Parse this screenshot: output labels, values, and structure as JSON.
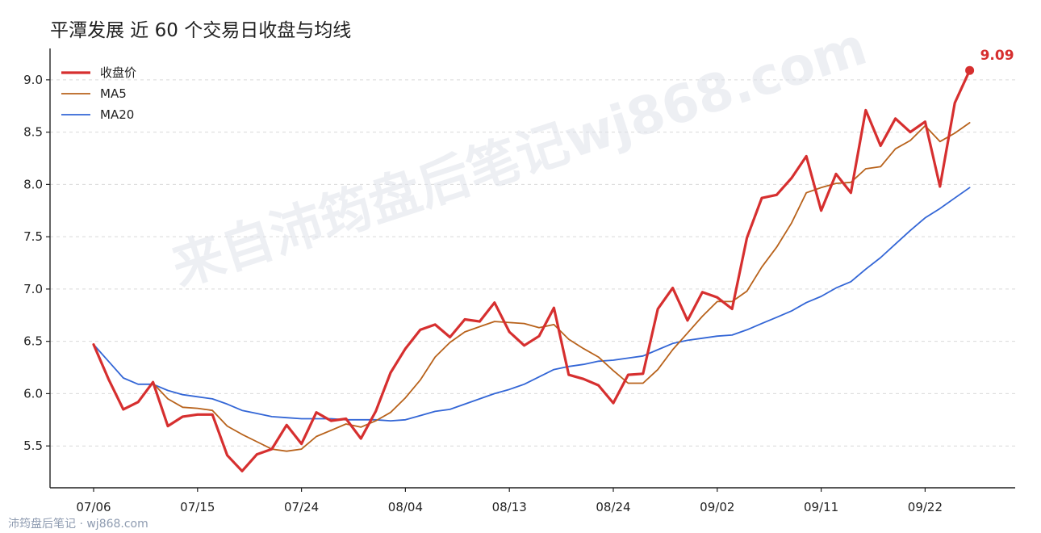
{
  "watermark": {
    "main": "来自沛筠盘后笔记wj868.com",
    "corner": "沛筠盘后笔记 · wj868.com"
  },
  "chart_data": {
    "type": "line",
    "title": "平潭发展 近 60 个交易日收盘与均线",
    "xlabel": "",
    "ylabel": "",
    "ylim": [
      5.1,
      9.3
    ],
    "yticks": [
      5.5,
      6.0,
      6.5,
      7.0,
      7.5,
      8.0,
      8.5,
      9.0
    ],
    "xtick_labels": [
      "07/06",
      "07/15",
      "07/24",
      "08/04",
      "08/13",
      "08/24",
      "09/02",
      "09/11",
      "09/22"
    ],
    "xtick_index": [
      0,
      7,
      14,
      21,
      28,
      35,
      42,
      49,
      56
    ],
    "grid": "horizontal-dashed",
    "legend": "top-left",
    "last_value_label": "9.09",
    "colors": {
      "close": "#d62f2f",
      "ma5": "#b8621b",
      "ma20": "#3366d6"
    },
    "series": [
      {
        "name": "收盘价",
        "key": "close",
        "values": [
          6.47,
          6.14,
          5.85,
          5.92,
          6.11,
          5.69,
          5.78,
          5.8,
          5.8,
          5.41,
          5.26,
          5.42,
          5.47,
          5.7,
          5.52,
          5.82,
          5.74,
          5.76,
          5.57,
          5.83,
          6.2,
          6.43,
          6.61,
          6.66,
          6.54,
          6.71,
          6.69,
          6.87,
          6.59,
          6.46,
          6.55,
          6.82,
          6.18,
          6.14,
          6.08,
          5.91,
          6.18,
          6.19,
          6.81,
          7.01,
          6.7,
          6.97,
          6.92,
          6.81,
          7.49,
          7.87,
          7.9,
          8.06,
          8.27,
          7.75,
          8.1,
          7.92,
          8.71,
          8.37,
          8.63,
          8.5,
          8.6,
          7.98,
          8.78,
          9.09
        ]
      },
      {
        "name": "MA5",
        "key": "ma5",
        "values": [
          null,
          null,
          null,
          null,
          6.1,
          5.95,
          5.87,
          5.86,
          5.84,
          5.69,
          5.61,
          5.54,
          5.47,
          5.45,
          5.47,
          5.59,
          5.65,
          5.71,
          5.68,
          5.74,
          5.82,
          5.96,
          6.13,
          6.35,
          6.49,
          6.59,
          6.64,
          6.69,
          6.68,
          6.67,
          6.63,
          6.66,
          6.52,
          6.43,
          6.35,
          6.22,
          6.1,
          6.1,
          6.23,
          6.42,
          6.58,
          6.74,
          6.88,
          6.88,
          6.98,
          7.21,
          7.4,
          7.63,
          7.92,
          7.97,
          8.01,
          8.02,
          8.15,
          8.17,
          8.34,
          8.42,
          8.56,
          8.41,
          8.49,
          8.59
        ]
      },
      {
        "name": "MA20",
        "key": "ma20",
        "values": [
          6.47,
          6.31,
          6.15,
          6.09,
          6.09,
          6.03,
          5.99,
          5.97,
          5.95,
          5.9,
          5.84,
          5.81,
          5.78,
          5.77,
          5.76,
          5.76,
          5.76,
          5.75,
          5.75,
          5.75,
          5.74,
          5.75,
          5.79,
          5.83,
          5.85,
          5.9,
          5.95,
          6.0,
          6.04,
          6.09,
          6.16,
          6.23,
          6.26,
          6.28,
          6.31,
          6.32,
          6.34,
          6.36,
          6.42,
          6.48,
          6.51,
          6.53,
          6.55,
          6.56,
          6.61,
          6.67,
          6.73,
          6.79,
          6.87,
          6.93,
          7.01,
          7.07,
          7.19,
          7.3,
          7.43,
          7.56,
          7.68,
          7.77,
          7.87,
          7.97
        ]
      }
    ]
  }
}
